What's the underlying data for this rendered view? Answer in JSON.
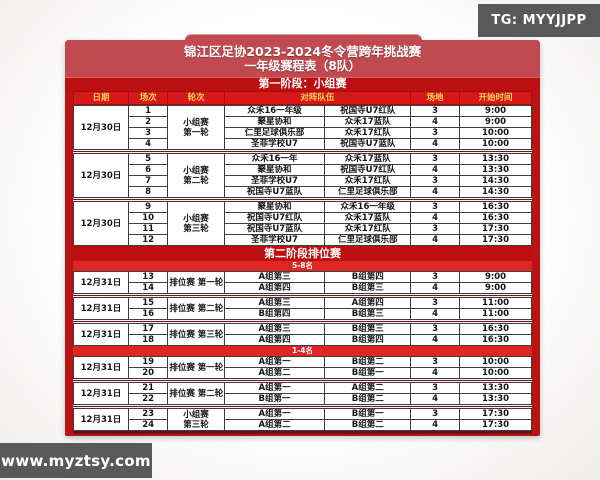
{
  "watermarks": {
    "top": "TG: MYYJJPP",
    "bottom": "www.myztsy.com"
  },
  "header": {
    "title_line1": "锦江区足协2023-2024冬令营跨年挑战赛",
    "title_line2": "一年级赛程表（8队）"
  },
  "columns": {
    "date": "日期",
    "match": "场次",
    "round": "轮次",
    "teams": "对阵队伍",
    "venue": "场地",
    "time": "开始时间"
  },
  "colors": {
    "panel_red": "#b81414",
    "banner_red": "#c04a50",
    "band_red": "#bd0f0f",
    "header_red": "#d51818",
    "bright_red": "#e02525",
    "header_text_yellow": "#ffd257",
    "watermark_bg": "#595959"
  },
  "stage1": {
    "label": "第一阶段：小组赛",
    "blocks": [
      {
        "date": "12月30日",
        "round": [
          "小组赛",
          "第一轮"
        ],
        "rows": [
          {
            "no": "1",
            "home": "众禾16一年级",
            "away": "祝国寺U7红队",
            "venue": "3",
            "time": "9:00"
          },
          {
            "no": "2",
            "home": "聚星协和",
            "away": "众禾17蓝队",
            "venue": "4",
            "time": "9:00"
          },
          {
            "no": "3",
            "home": "仁里足球俱乐部",
            "away": "众禾17红队",
            "venue": "3",
            "time": "10:00"
          },
          {
            "no": "4",
            "home": "圣菲学校U7",
            "away": "祝国寺U7蓝队",
            "venue": "4",
            "time": "10:00"
          }
        ]
      },
      {
        "date": "12月30日",
        "round": [
          "小组赛",
          "第二轮"
        ],
        "rows": [
          {
            "no": "5",
            "home": "众禾16一年",
            "away": "众禾17蓝队",
            "venue": "3",
            "time": "13:30"
          },
          {
            "no": "6",
            "home": "聚星协和",
            "away": "祝国寺U7红队",
            "venue": "4",
            "time": "13:30"
          },
          {
            "no": "7",
            "home": "圣菲学校U7",
            "away": "众禾17红队",
            "venue": "3",
            "time": "14:30"
          },
          {
            "no": "8",
            "home": "祝国寺U7蓝队",
            "away": "仁里足球俱乐部",
            "venue": "4",
            "time": "14:30"
          }
        ]
      },
      {
        "date": "12月30日",
        "round": [
          "小组赛",
          "第三轮"
        ],
        "rows": [
          {
            "no": "9",
            "home": "聚星协和",
            "away": "众禾16一年级",
            "venue": "3",
            "time": "16:30"
          },
          {
            "no": "10",
            "home": "祝国寺U7红队",
            "away": "众禾17蓝队",
            "venue": "4",
            "time": "16:30"
          },
          {
            "no": "11",
            "home": "祝国寺U7蓝队",
            "away": "众禾17红队",
            "venue": "3",
            "time": "17:30"
          },
          {
            "no": "12",
            "home": "圣菲学校U7",
            "away": "仁里足球俱乐部",
            "venue": "4",
            "time": "17:30"
          }
        ]
      }
    ]
  },
  "stage2": {
    "label": "第二阶段排位赛",
    "groups": [
      {
        "label": "5-8名",
        "blocks": [
          {
            "date": "12月31日",
            "round": [
              "排位赛 第一轮"
            ],
            "rows": [
              {
                "no": "13",
                "home": "A组第三",
                "away": "B组第四",
                "venue": "3",
                "time": "9:00"
              },
              {
                "no": "14",
                "home": "A组第四",
                "away": "B组第三",
                "venue": "4",
                "time": "9:00"
              }
            ]
          },
          {
            "date": "12月31日",
            "round": [
              "排位赛 第二轮"
            ],
            "rows": [
              {
                "no": "15",
                "home": "A组第三",
                "away": "A组第四",
                "venue": "3",
                "time": "11:00"
              },
              {
                "no": "16",
                "home": "B组第四",
                "away": "B组第三",
                "venue": "4",
                "time": "11:00"
              }
            ]
          },
          {
            "date": "12月31日",
            "round": [
              "排位赛 第三轮"
            ],
            "rows": [
              {
                "no": "17",
                "home": "A组第三",
                "away": "B组第三",
                "venue": "3",
                "time": "16:30"
              },
              {
                "no": "18",
                "home": "A组第四",
                "away": "B组第四",
                "venue": "4",
                "time": "16:30"
              }
            ]
          }
        ]
      },
      {
        "label": "1-4名",
        "blocks": [
          {
            "date": "12月31日",
            "round": [
              "排位赛 第一轮"
            ],
            "rows": [
              {
                "no": "19",
                "home": "A组第一",
                "away": "B组第二",
                "venue": "3",
                "time": "10:00"
              },
              {
                "no": "20",
                "home": "A组第二",
                "away": "B组第一",
                "venue": "4",
                "time": "10:00"
              }
            ]
          },
          {
            "date": "12月31日",
            "round": [
              "排位赛 第二轮"
            ],
            "rows": [
              {
                "no": "21",
                "home": "A组第一",
                "away": "A组第二",
                "venue": "3",
                "time": "13:30"
              },
              {
                "no": "22",
                "home": "B组第一",
                "away": "B组第二",
                "venue": "4",
                "time": "13:30"
              }
            ]
          },
          {
            "date": "12月31日",
            "round": [
              "小组赛",
              "第三轮"
            ],
            "rows": [
              {
                "no": "23",
                "home": "A组第一",
                "away": "B组第一",
                "venue": "3",
                "time": "17:30"
              },
              {
                "no": "24",
                "home": "A组第二",
                "away": "B组第二",
                "venue": "4",
                "time": "17:30"
              }
            ]
          }
        ]
      }
    ]
  }
}
